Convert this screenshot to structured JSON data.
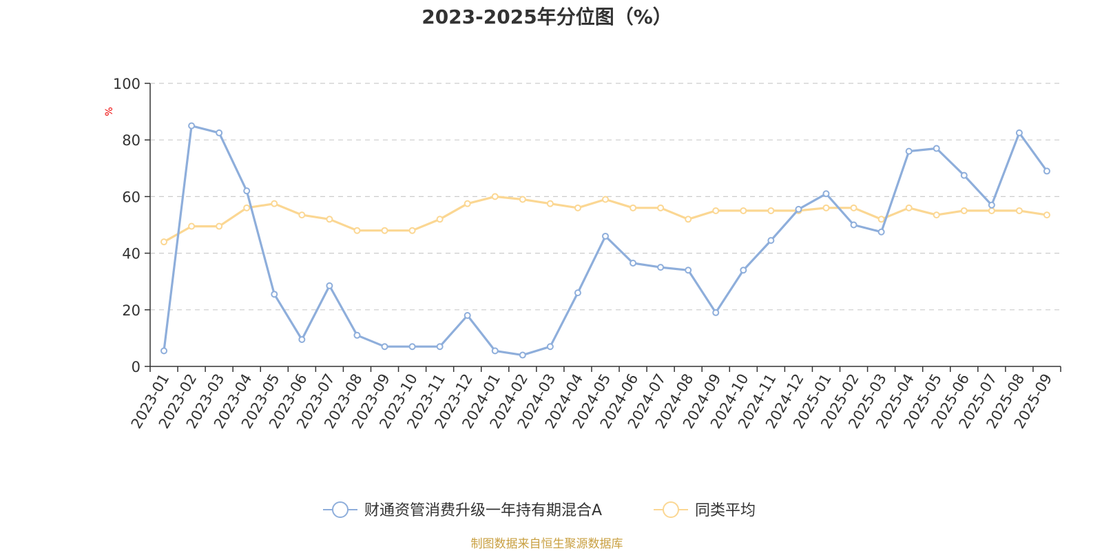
{
  "chart_data": {
    "type": "line",
    "title": "2023-2025年分位图（%）",
    "ylabel": "%",
    "ylim": [
      0,
      100
    ],
    "yticks": [
      "0",
      "20",
      "40",
      "60",
      "80",
      "100"
    ],
    "grid": true,
    "legend_position": "bottom",
    "categories": [
      "2023-01",
      "2023-02",
      "2023-03",
      "2023-04",
      "2023-05",
      "2023-06",
      "2023-07",
      "2023-08",
      "2023-09",
      "2023-10",
      "2023-11",
      "2023-12",
      "2024-01",
      "2024-02",
      "2024-03",
      "2024-04",
      "2024-05",
      "2024-06",
      "2024-07",
      "2024-08",
      "2024-09",
      "2024-10",
      "2024-11",
      "2024-12",
      "2025-01",
      "2025-02",
      "2025-03",
      "2025-04",
      "2025-05",
      "2025-06",
      "2025-07",
      "2025-08",
      "2025-09"
    ],
    "series": [
      {
        "name": "财通资管消费升级一年持有期混合A",
        "color": "#8eaedb",
        "values": [
          5.5,
          85,
          82.5,
          62,
          25.5,
          9.5,
          28.5,
          11,
          7,
          7,
          7,
          18,
          5.5,
          4,
          7,
          26,
          46,
          36.5,
          35,
          34,
          19,
          34,
          44.5,
          55.5,
          61,
          50,
          47.5,
          76,
          77,
          67.5,
          57,
          82.5,
          69
        ]
      },
      {
        "name": "同类平均",
        "color": "#fbd793",
        "values": [
          44,
          49.5,
          49.5,
          56,
          57.5,
          53.5,
          52,
          48,
          48,
          48,
          52,
          57.5,
          60,
          59,
          57.5,
          56,
          59,
          56,
          56,
          52,
          55,
          55,
          55,
          55,
          56,
          56,
          52,
          56,
          53.5,
          55,
          55,
          55,
          53.5
        ]
      }
    ],
    "source_note": "制图数据来自恒生聚源数据库",
    "colors": {
      "unit": "#ee0000",
      "source": "#c9a042",
      "axis": "#333333",
      "grid": "#cccccc"
    }
  }
}
